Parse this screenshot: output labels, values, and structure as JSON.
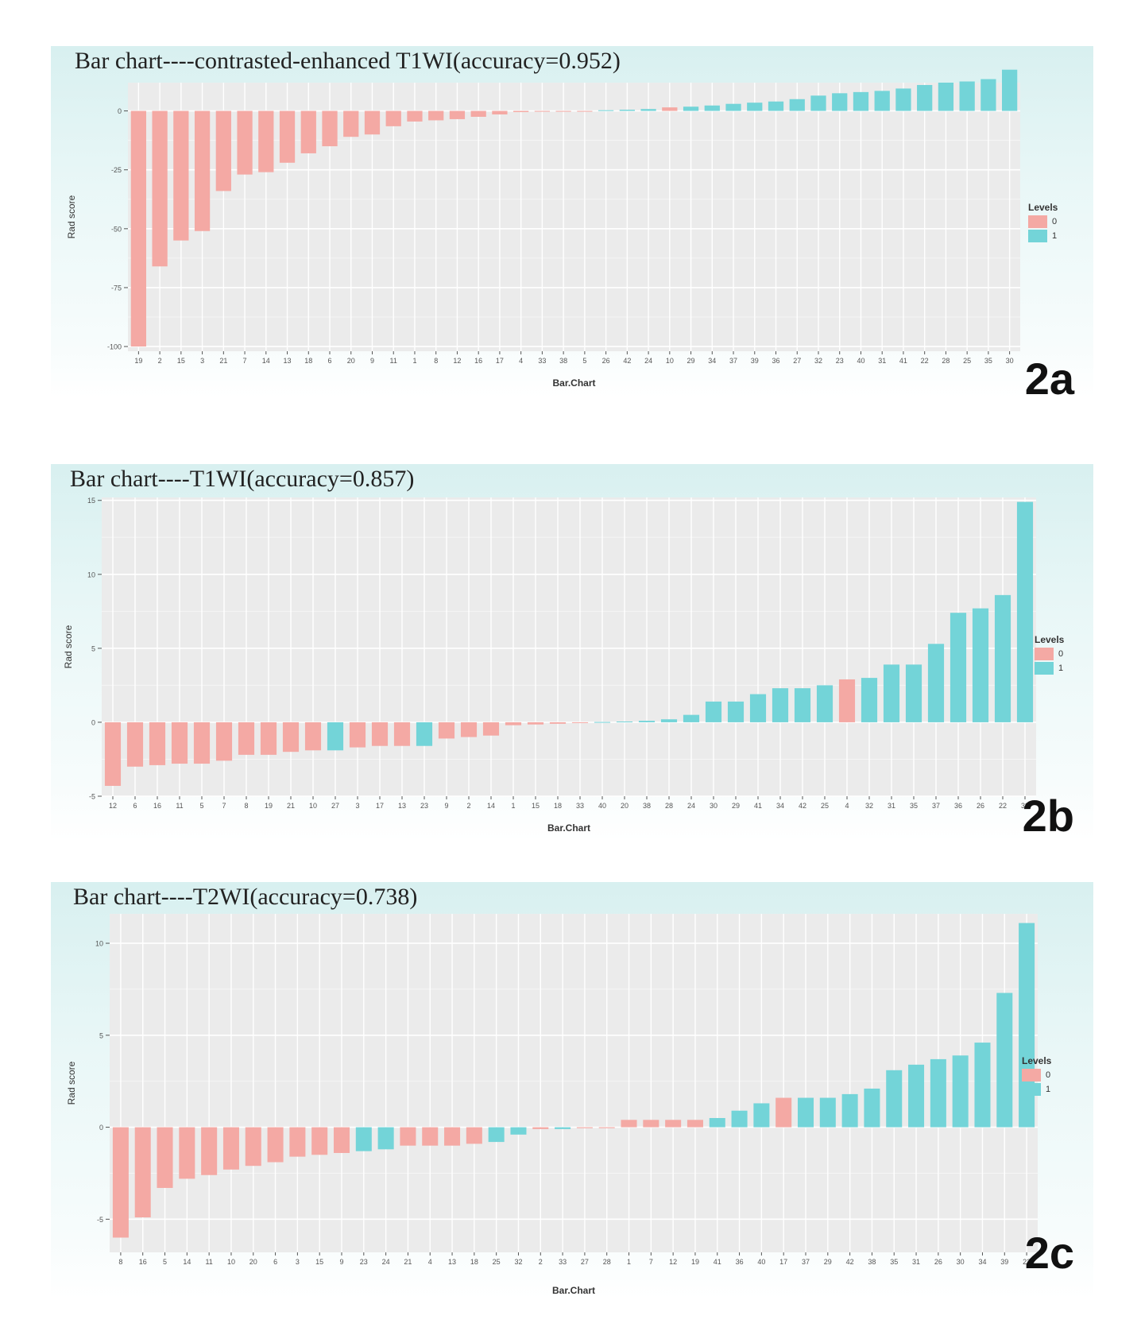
{
  "colors": {
    "level0": "#f4a9a4",
    "level1": "#73d4d8",
    "plot_bg": "#ebebeb",
    "grid": "#ffffff"
  },
  "legend": {
    "title": "Levels",
    "items": [
      "0",
      "1"
    ]
  },
  "chart_data": [
    {
      "id": "2a",
      "panel_label": "2a",
      "type": "bar",
      "title": "Bar chart----contrasted-enhanced T1WI(accuracy=0.952)",
      "xlabel": "Bar.Chart",
      "ylabel": "Rad score",
      "ylim": [
        -102,
        12
      ],
      "yticks": [
        0,
        -25,
        -50,
        -75,
        -100
      ],
      "ytick_labels": [
        "0",
        "-25",
        "-50",
        "-75",
        "-100"
      ],
      "categories": [
        "19",
        "2",
        "15",
        "3",
        "21",
        "7",
        "14",
        "13",
        "18",
        "6",
        "20",
        "9",
        "11",
        "1",
        "8",
        "12",
        "16",
        "17",
        "4",
        "33",
        "38",
        "5",
        "26",
        "42",
        "24",
        "10",
        "29",
        "34",
        "37",
        "39",
        "36",
        "27",
        "32",
        "23",
        "40",
        "31",
        "41",
        "22",
        "28",
        "25",
        "35",
        "30"
      ],
      "values": [
        -100,
        -66,
        -55,
        -51,
        -34,
        -27,
        -26,
        -22,
        -18,
        -15,
        -11,
        -10,
        -6.5,
        -4.5,
        -4,
        -3.5,
        -2.5,
        -1.5,
        -0.5,
        -0.3,
        -0.2,
        -0.1,
        0.3,
        0.5,
        0.8,
        1.5,
        1.8,
        2.3,
        3,
        3.5,
        4,
        5,
        6.5,
        7.5,
        8,
        8.5,
        9.5,
        11,
        12,
        12.5,
        13.5,
        17.5
      ],
      "levels": [
        0,
        0,
        0,
        0,
        0,
        0,
        0,
        0,
        0,
        0,
        0,
        0,
        0,
        0,
        0,
        0,
        0,
        0,
        0,
        0,
        0,
        0,
        1,
        1,
        1,
        0,
        1,
        1,
        1,
        1,
        1,
        1,
        1,
        1,
        1,
        1,
        1,
        1,
        1,
        1,
        1,
        1
      ]
    },
    {
      "id": "2b",
      "panel_label": "2b",
      "type": "bar",
      "title": "Bar chart----T1WI(accuracy=0.857)",
      "xlabel": "Bar.Chart",
      "ylabel": "Rad score",
      "ylim": [
        -5,
        15.2
      ],
      "yticks": [
        15,
        10,
        5,
        0,
        -5
      ],
      "ytick_labels": [
        "15",
        "10",
        "5",
        "0",
        "-5"
      ],
      "categories": [
        "12",
        "6",
        "16",
        "11",
        "5",
        "7",
        "8",
        "19",
        "21",
        "10",
        "27",
        "3",
        "17",
        "13",
        "23",
        "9",
        "2",
        "14",
        "1",
        "15",
        "18",
        "33",
        "40",
        "20",
        "38",
        "28",
        "24",
        "30",
        "29",
        "41",
        "34",
        "42",
        "25",
        "4",
        "32",
        "31",
        "35",
        "37",
        "36",
        "26",
        "22",
        "39"
      ],
      "values": [
        -4.3,
        -3,
        -2.9,
        -2.8,
        -2.8,
        -2.6,
        -2.2,
        -2.2,
        -2,
        -1.9,
        -1.9,
        -1.7,
        -1.6,
        -1.6,
        -1.6,
        -1.1,
        -1,
        -0.9,
        -0.2,
        -0.15,
        -0.1,
        -0.05,
        0.02,
        0.05,
        0.1,
        0.2,
        0.5,
        1.4,
        1.4,
        1.9,
        2.3,
        2.3,
        2.5,
        2.9,
        3,
        3.9,
        3.9,
        5.3,
        7.4,
        7.7,
        8.6,
        14.9
      ],
      "levels": [
        0,
        0,
        0,
        0,
        0,
        0,
        0,
        0,
        0,
        0,
        1,
        0,
        0,
        0,
        1,
        0,
        0,
        0,
        0,
        0,
        0,
        0,
        1,
        1,
        1,
        1,
        1,
        1,
        1,
        1,
        1,
        1,
        1,
        0,
        1,
        1,
        1,
        1,
        1,
        1,
        1,
        1
      ]
    },
    {
      "id": "2c",
      "panel_label": "2c",
      "type": "bar",
      "title": "Bar chart----T2WI(accuracy=0.738)",
      "xlabel": "Bar.Chart",
      "ylabel": "Rad score",
      "ylim": [
        -6.8,
        11.6
      ],
      "yticks": [
        10,
        5,
        0,
        -5
      ],
      "ytick_labels": [
        "10",
        "5",
        "0",
        "-5"
      ],
      "categories": [
        "8",
        "16",
        "5",
        "14",
        "11",
        "10",
        "20",
        "6",
        "3",
        "15",
        "9",
        "23",
        "24",
        "21",
        "4",
        "13",
        "18",
        "25",
        "32",
        "2",
        "33",
        "27",
        "28",
        "1",
        "7",
        "12",
        "19",
        "41",
        "36",
        "40",
        "17",
        "37",
        "29",
        "42",
        "38",
        "35",
        "31",
        "26",
        "30",
        "34",
        "39",
        "22"
      ],
      "values": [
        -6,
        -4.9,
        -3.3,
        -2.8,
        -2.6,
        -2.3,
        -2.1,
        -1.9,
        -1.6,
        -1.5,
        -1.4,
        -1.3,
        -1.2,
        -1,
        -1,
        -1,
        -0.9,
        -0.8,
        -0.4,
        -0.1,
        -0.1,
        -0.05,
        -0.05,
        0.4,
        0.4,
        0.4,
        0.4,
        0.5,
        0.9,
        1.3,
        1.6,
        1.6,
        1.6,
        1.8,
        2.1,
        3.1,
        3.4,
        3.7,
        3.9,
        4.6,
        7.3,
        11.1
      ],
      "levels": [
        0,
        0,
        0,
        0,
        0,
        0,
        0,
        0,
        0,
        0,
        0,
        1,
        1,
        0,
        0,
        0,
        0,
        1,
        1,
        0,
        1,
        0,
        0,
        0,
        0,
        0,
        0,
        1,
        1,
        1,
        0,
        1,
        1,
        1,
        1,
        1,
        1,
        1,
        1,
        1,
        1,
        1
      ]
    }
  ]
}
